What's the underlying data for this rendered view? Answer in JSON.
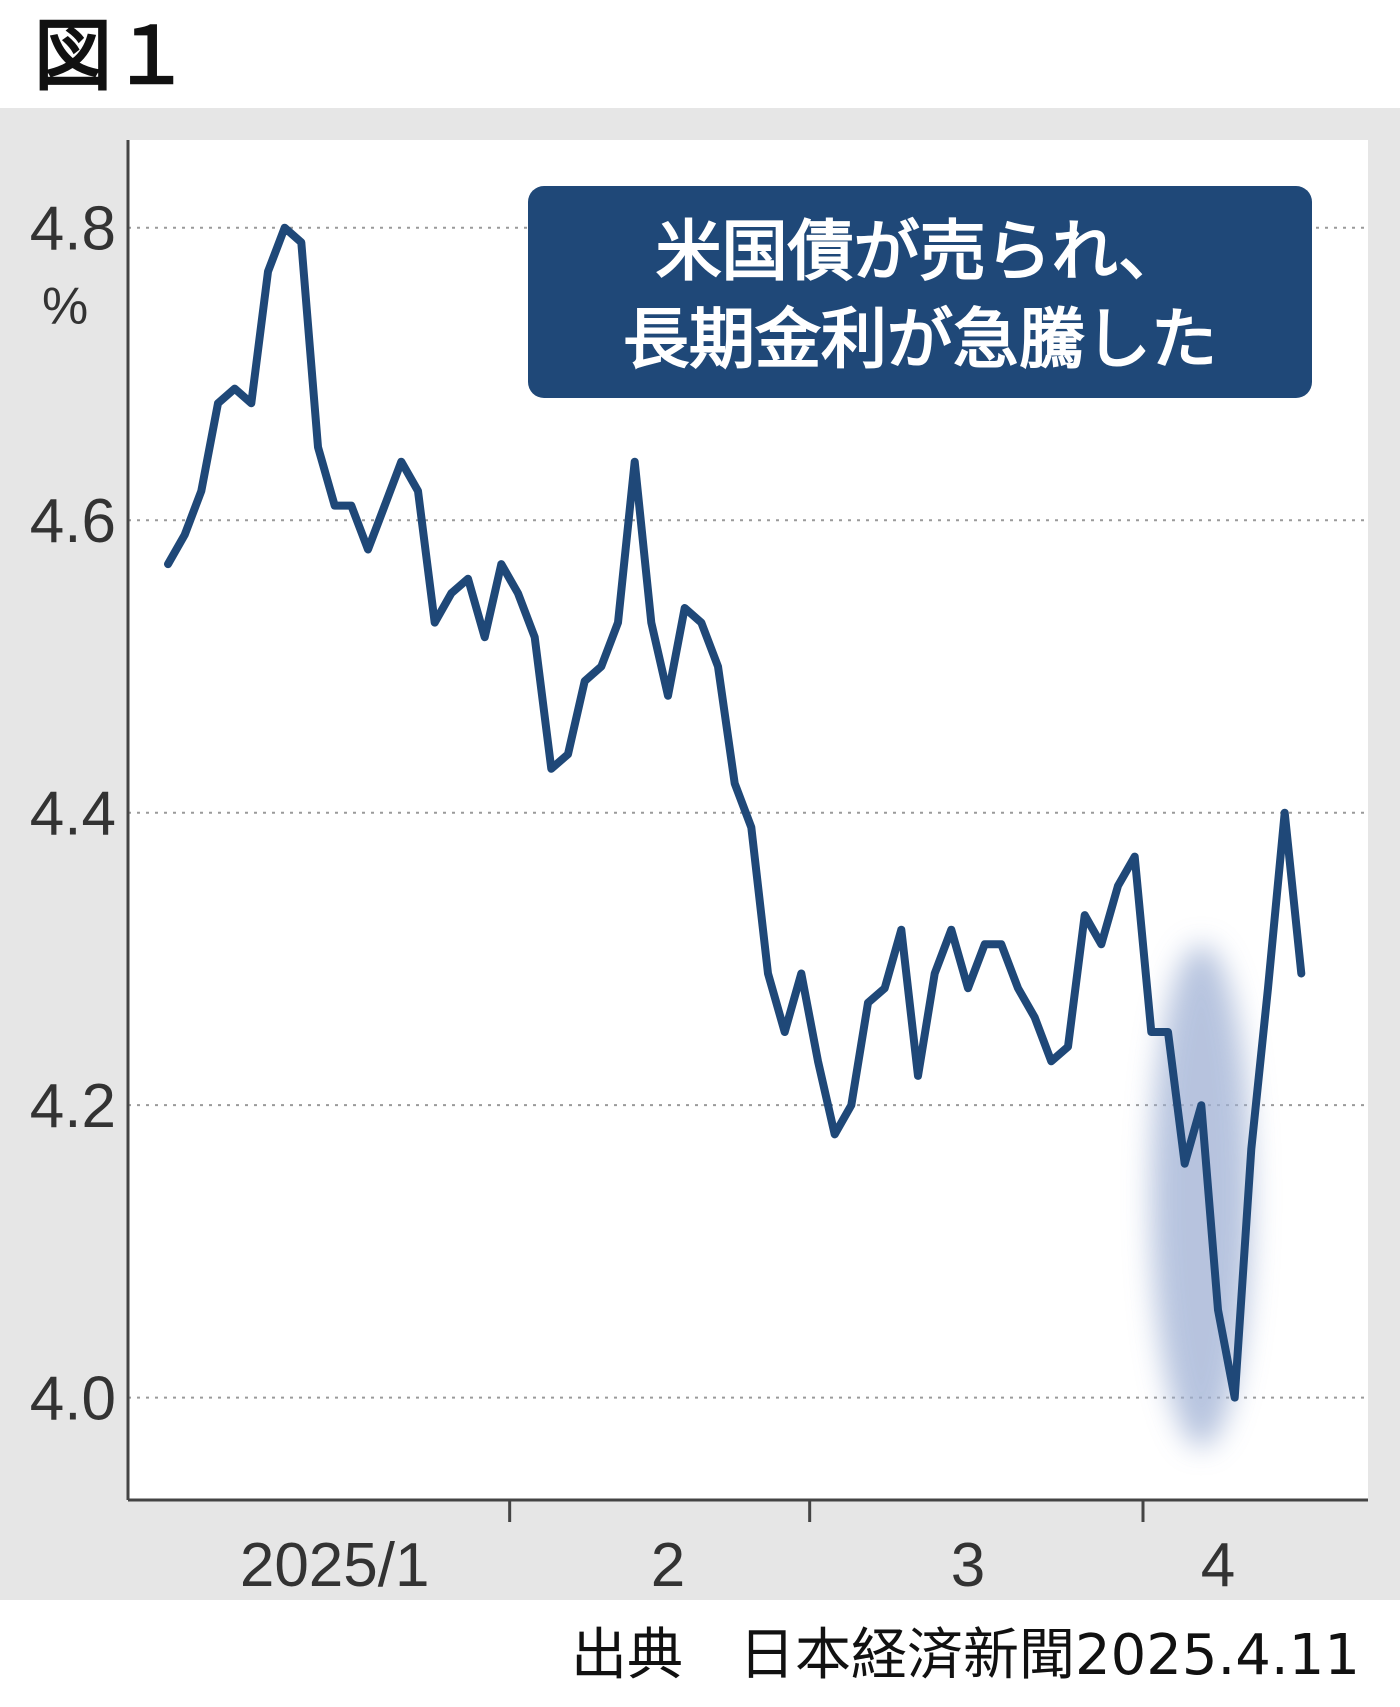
{
  "figure_label": "図１",
  "source": "出典　日本経済新聞2025.4.11",
  "colors": {
    "background": "#e6e6e6",
    "line": "#1f4878",
    "callout_bg": "#1f4878",
    "callout_text": "#ffffff",
    "highlight": "#9fb0d4",
    "grid": "#9a9a9a"
  },
  "chart_data": {
    "type": "line",
    "title": "",
    "xlabel": "",
    "ylabel": "%",
    "ylim": [
      3.93,
      4.86
    ],
    "yticks": [
      4.8,
      4.6,
      4.4,
      4.2,
      4.0
    ],
    "ytick_labels": [
      "4.8",
      "4.6",
      "4.4",
      "4.2",
      "4.0"
    ],
    "xlim": [
      0,
      69
    ],
    "x_month_ticks": [
      {
        "label": "2025/1",
        "label_x": 10,
        "tick_x": null
      },
      {
        "label": "2",
        "label_x": 30,
        "tick_x": 20.5
      },
      {
        "label": "3",
        "label_x": 48,
        "tick_x": 38.5
      },
      {
        "label": "4",
        "label_x": 63,
        "tick_x": 58.5
      }
    ],
    "grid": "horizontal-dotted",
    "callout": [
      "米国債が売られ、",
      "長期金利が急騰した"
    ],
    "highlight_x_range": [
      59,
      65
    ],
    "series": [
      {
        "x": [
          0,
          1,
          2,
          3,
          4,
          5,
          6,
          7,
          8,
          9,
          10,
          11,
          12,
          13,
          14,
          15,
          16,
          17,
          18,
          19,
          20,
          21,
          22,
          23,
          24,
          25,
          26,
          27,
          28,
          29,
          30,
          31,
          32,
          33,
          34,
          35,
          36,
          37,
          38,
          39,
          40,
          41,
          42,
          43,
          44,
          45,
          46,
          47,
          48,
          49,
          50,
          51,
          52,
          53,
          54,
          55,
          56,
          57,
          58,
          59,
          60,
          61,
          62,
          63,
          64,
          65,
          66,
          67,
          68
        ],
        "values": [
          4.57,
          4.59,
          4.62,
          4.68,
          4.69,
          4.68,
          4.77,
          4.8,
          4.79,
          4.65,
          4.61,
          4.61,
          4.58,
          4.61,
          4.64,
          4.62,
          4.53,
          4.55,
          4.56,
          4.52,
          4.57,
          4.55,
          4.52,
          4.43,
          4.44,
          4.49,
          4.5,
          4.53,
          4.64,
          4.53,
          4.48,
          4.54,
          4.53,
          4.5,
          4.42,
          4.39,
          4.29,
          4.25,
          4.29,
          4.23,
          4.18,
          4.2,
          4.27,
          4.28,
          4.32,
          4.22,
          4.29,
          4.32,
          4.28,
          4.31,
          4.31,
          4.28,
          4.26,
          4.23,
          4.24,
          4.33,
          4.31,
          4.35,
          4.37,
          4.25,
          4.25,
          4.16,
          4.2,
          4.06,
          4.0,
          4.17,
          4.28,
          4.4,
          4.29
        ]
      }
    ]
  }
}
